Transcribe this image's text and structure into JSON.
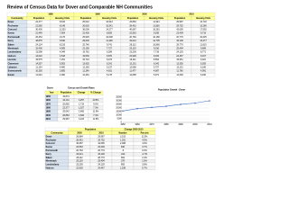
{
  "header": {
    "title": "Review of Census Data for Dover and Comparable NH Communities"
  },
  "table1": {
    "groups": [
      "1980",
      "1990",
      "2000",
      "2010"
    ],
    "columns": [
      "Community",
      "Population",
      "Housing Units",
      "Population",
      "Housing Units",
      "Population",
      "Housing Units",
      "Population",
      "Housing Units"
    ],
    "rows": [
      [
        "Dover",
        "22,377",
        "8,615",
        "25,042",
        "10,543",
        "26,884",
        "11,924",
        "29,987",
        "13,718"
      ],
      [
        "Rochester",
        "21,560",
        "8,148",
        "26,630",
        "10,541",
        "28,461",
        "11,836",
        "29,752",
        "13,280"
      ],
      [
        "Concord",
        "30,400",
        "11,320",
        "36,006",
        "14,277",
        "40,687",
        "16,281",
        "42,695",
        "17,592"
      ],
      [
        "Keene",
        "21,449",
        "7,954",
        "22,430",
        "8,829",
        "22,563",
        "9,295",
        "23,409",
        "9,719"
      ],
      [
        "Portsmouth",
        "26,254",
        "9,176",
        "25,925",
        "10,608",
        "20,784",
        "10,186",
        "20,779",
        "10,625"
      ],
      [
        "Derry",
        "18,875",
        "6,540",
        "29,603",
        "11,209",
        "34,021",
        "12,735",
        "33,109",
        "13,277"
      ],
      [
        "Salem",
        "24,124",
        "8,219",
        "25,746",
        "9,741",
        "28,112",
        "10,866",
        "28,776",
        "11,810"
      ],
      [
        "Merrimack",
        "15,406",
        "4,909",
        "22,156",
        "7,727",
        "25,119",
        "9,016",
        "25,494",
        "9,689"
      ],
      [
        "Londonderry",
        "13,598",
        "4,049",
        "19,781",
        "6,289",
        "23,236",
        "7,718",
        "24,129",
        "8,771"
      ],
      [
        "Hudson",
        "14,022",
        "4,518",
        "19,530",
        "6,870",
        "22,928",
        "8,034",
        "24,467",
        "9,107"
      ],
      [
        "Laconia",
        "15,575",
        "7,251",
        "15,743",
        "8,073",
        "16,411",
        "8,554",
        "15,951",
        "9,021"
      ],
      [
        "Claremont",
        "14,557",
        "5,952",
        "13,902",
        "6,241",
        "13,151",
        "6,042",
        "13,355",
        "6,265"
      ],
      [
        "Lebanon",
        "11,134",
        "4,480",
        "12,183",
        "5,237",
        "12,568",
        "5,707",
        "13,151",
        "6,186"
      ],
      [
        "Somersworth",
        "10,350",
        "3,855",
        "11,249",
        "4,631",
        "11,477",
        "4,687",
        "11,766",
        "4,991"
      ],
      [
        "Exeter",
        "11,024",
        "4,090",
        "12,481",
        "5,178",
        "14,058",
        "5,971",
        "14,306",
        "6,496"
      ]
    ]
  },
  "dover": {
    "title": "Dover",
    "subtitle": "Census and Growth Rates",
    "columns": [
      "Year",
      "Population",
      "Change",
      "% Change"
    ],
    "rows": [
      [
        "1950",
        "15,874",
        "",
        ""
      ],
      [
        "1960",
        "19,131",
        "3,257",
        "20.5%"
      ],
      [
        "1970",
        "20,850",
        "1,719",
        "9.0%"
      ],
      [
        "1980",
        "22,377",
        "1,527",
        "7.3%"
      ],
      [
        "1990",
        "25,042",
        "2,665",
        "11.9%"
      ],
      [
        "2000",
        "26,884",
        "1,842",
        "7.4%"
      ],
      [
        "2010",
        "29,987",
        "3,103",
        "11.5%"
      ]
    ]
  },
  "chart": {
    "type": "line",
    "title": "Population Growth - Dover",
    "x": [
      1950,
      1960,
      1970,
      1980,
      1990,
      2000,
      2010
    ],
    "values": [
      15874,
      19131,
      20850,
      22377,
      25042,
      26884,
      29987
    ],
    "color": "#4472c4",
    "xlim": [
      1950,
      2010
    ],
    "xticks": [
      1950,
      1960,
      1970,
      1980,
      1990,
      2000,
      2010
    ],
    "ylim": [
      0,
      35000
    ],
    "yticks": [
      0,
      5000,
      10000,
      15000,
      20000,
      25000,
      30000,
      35000
    ],
    "grid": true
  },
  "comparison": {
    "groups": [
      "Population",
      "Change 2000-2010"
    ],
    "columns": [
      "Community",
      "2000",
      "2010",
      "Number",
      "Percent"
    ],
    "rows": [
      [
        "Dover",
        "26,884",
        "29,987",
        "3,103",
        "11.5%"
      ],
      [
        "Rochester",
        "28,461",
        "29,752",
        "1,291",
        "4.5%"
      ],
      [
        "Concord",
        "40,687",
        "42,695",
        "2,008",
        "4.9%"
      ],
      [
        "Keene",
        "22,563",
        "23,409",
        "846",
        "3.7%"
      ],
      [
        "Portsmouth",
        "20,784",
        "20,779",
        "-5",
        "0.0%"
      ],
      [
        "Derry",
        "34,021",
        "33,109",
        "-912",
        "-2.7%"
      ],
      [
        "Salem",
        "28,112",
        "28,776",
        "664",
        "2.4%"
      ],
      [
        "Merrimack",
        "25,119",
        "25,494",
        "375",
        "1.5%"
      ],
      [
        "Londonderry",
        "23,236",
        "24,129",
        "893",
        "3.8%"
      ],
      [
        "Hudson",
        "22,928",
        "24,467",
        "1,539",
        "6.7%"
      ]
    ]
  }
}
